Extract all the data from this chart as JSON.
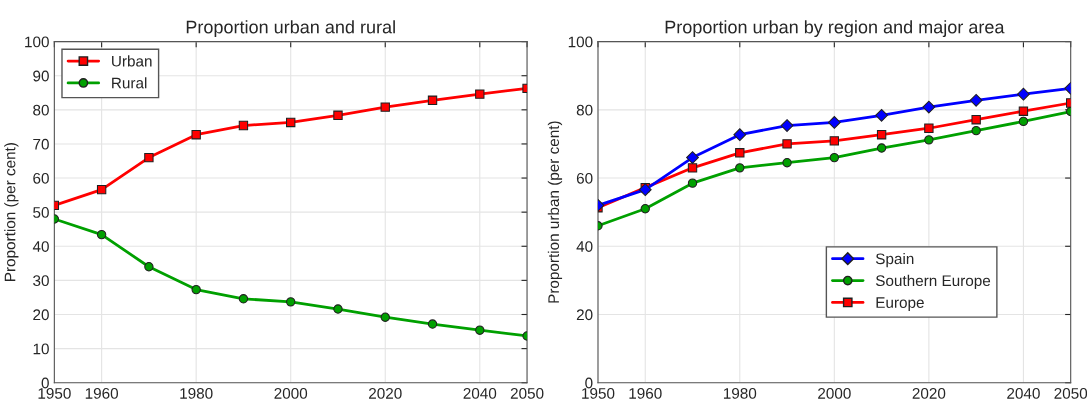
{
  "chart_data": [
    {
      "type": "line",
      "title": "Proportion urban and rural",
      "ylabel": "Proportion (per cent)",
      "x": [
        1950,
        1960,
        1970,
        1980,
        1990,
        2000,
        2010,
        2020,
        2030,
        2040,
        2050
      ],
      "series": [
        {
          "name": "Urban",
          "color": "#ff0000",
          "marker": "square",
          "values": [
            52,
            56.6,
            66,
            72.7,
            75.4,
            76.3,
            78.4,
            80.8,
            82.8,
            84.6,
            86.3
          ]
        },
        {
          "name": "Rural",
          "color": "#00a000",
          "marker": "circle",
          "values": [
            48,
            43.4,
            34,
            27.3,
            24.6,
            23.7,
            21.6,
            19.2,
            17.2,
            15.4,
            13.7
          ]
        }
      ],
      "xlim": [
        1950,
        2050
      ],
      "xticks": [
        1950,
        1960,
        1980,
        2000,
        2020,
        2040,
        2050
      ],
      "ylim": [
        0,
        100
      ],
      "yticks": [
        0,
        10,
        20,
        30,
        40,
        50,
        60,
        70,
        80,
        90,
        100
      ],
      "grid": true,
      "legend": "top left",
      "line_style": "solid"
    },
    {
      "type": "line",
      "title": "Proportion urban by region and major area",
      "ylabel": "Proportion urban (per cent)",
      "x": [
        1950,
        1960,
        1970,
        1980,
        1990,
        2000,
        2010,
        2020,
        2030,
        2040,
        2050
      ],
      "series": [
        {
          "name": "Spain",
          "color": "#0000ff",
          "marker": "diamond",
          "values": [
            52,
            56.6,
            66,
            72.7,
            75.4,
            76.3,
            78.4,
            80.8,
            82.8,
            84.6,
            86.3
          ]
        },
        {
          "name": "Southern Europe",
          "color": "#00a000",
          "marker": "circle",
          "values": [
            46,
            51,
            58.5,
            63,
            64.5,
            66,
            68.8,
            71.2,
            73.9,
            76.6,
            79.5
          ]
        },
        {
          "name": "Europe",
          "color": "#ff0000",
          "marker": "square",
          "values": [
            51.3,
            57.2,
            63,
            67.4,
            70,
            70.9,
            72.7,
            74.6,
            77.1,
            79.6,
            82
          ]
        }
      ],
      "xlim": [
        1950,
        2050
      ],
      "xticks": [
        1950,
        1960,
        1980,
        2000,
        2020,
        2040,
        2050
      ],
      "ylim": [
        0,
        100
      ],
      "yticks": [
        0,
        20,
        40,
        60,
        80,
        100
      ],
      "grid": true,
      "legend": "lower right",
      "line_style": "solid"
    }
  ]
}
